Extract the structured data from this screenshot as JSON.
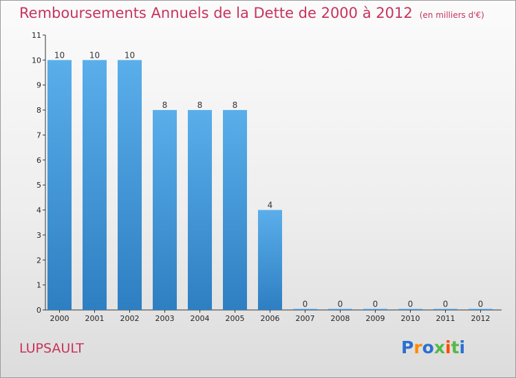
{
  "header": {
    "title": "Remboursements Annuels de la Dette de 2000 à 2012",
    "unit": "(en milliers d'€)"
  },
  "footer": {
    "commune": "LUPSAULT",
    "logo": "Proxiti"
  },
  "colors": {
    "title": "#c8335a",
    "bar_top": "#5aaeea",
    "bar_bottom": "#2e7fc2",
    "axis": "#333333"
  },
  "chart_data": {
    "type": "bar",
    "title": "Remboursements Annuels de la Dette de 2000 à 2012",
    "xlabel": "",
    "ylabel": "",
    "categories": [
      "2000",
      "2001",
      "2002",
      "2003",
      "2004",
      "2005",
      "2006",
      "2007",
      "2008",
      "2009",
      "2010",
      "2011",
      "2012"
    ],
    "values": [
      10,
      10,
      10,
      8,
      8,
      8,
      4,
      0,
      0,
      0,
      0,
      0,
      0
    ],
    "value_labels": [
      "10",
      "10",
      "10",
      "8",
      "8",
      "8",
      "4",
      "0",
      "0",
      "0",
      "0",
      "0",
      "0"
    ],
    "y_ticks": [
      "0",
      "1",
      "2",
      "3",
      "4",
      "5",
      "6",
      "7",
      "8",
      "9",
      "10",
      "11"
    ],
    "ylim": [
      0,
      11
    ],
    "grid": false,
    "legend": "none"
  }
}
